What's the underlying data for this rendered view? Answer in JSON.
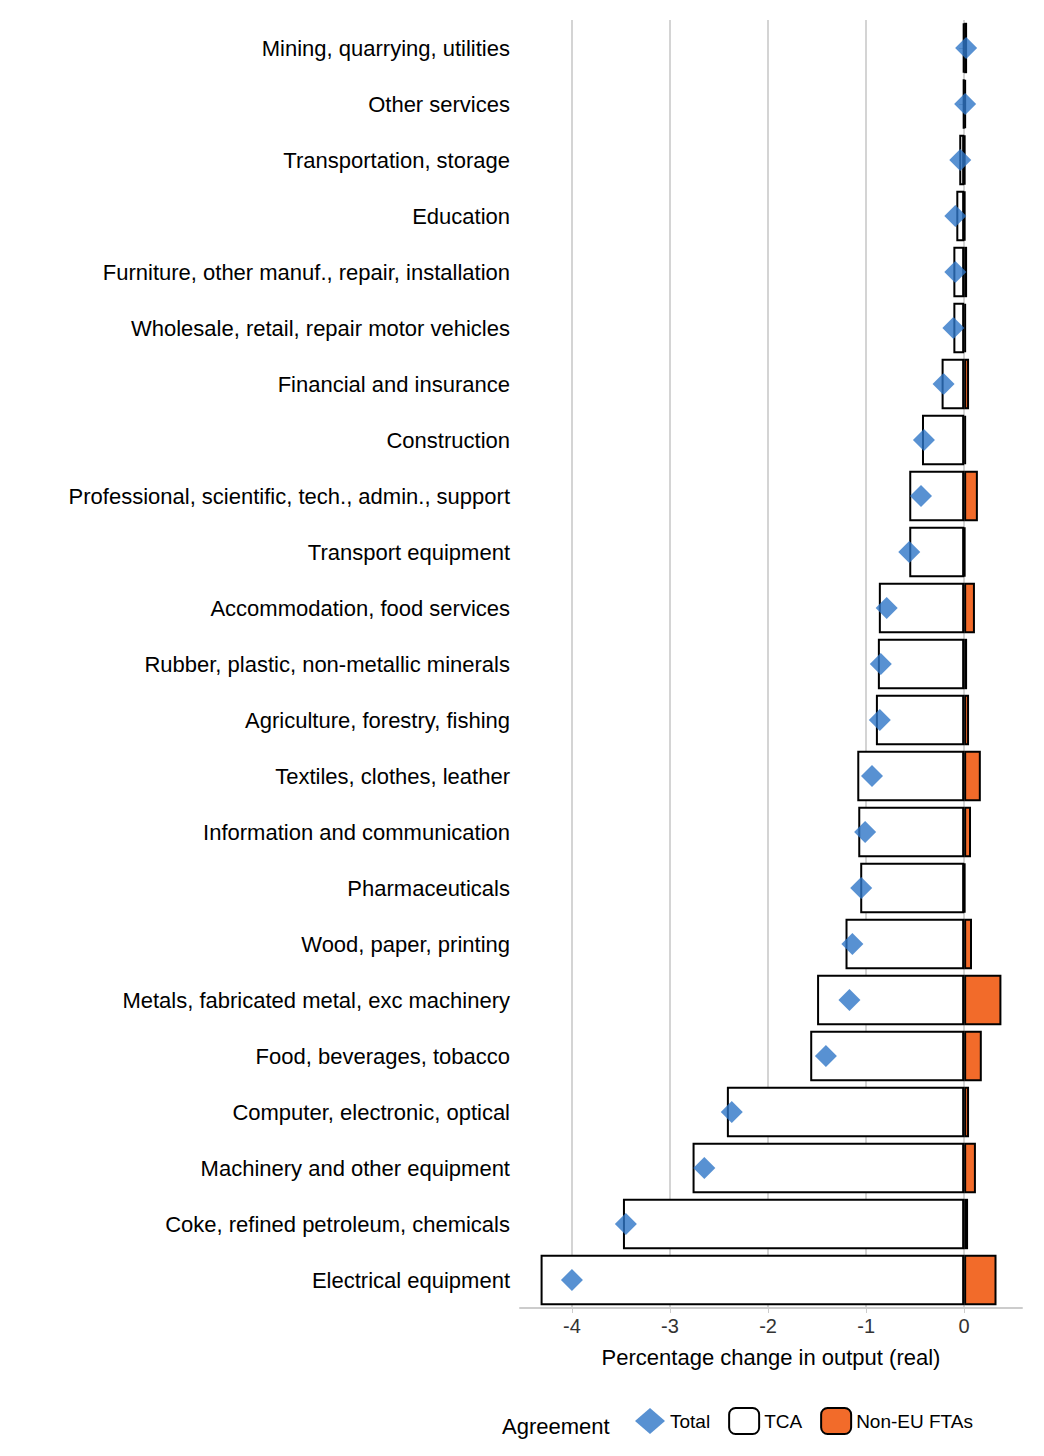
{
  "chart_data": {
    "type": "bar",
    "orientation": "horizontal",
    "stacked": true,
    "grid": true,
    "legend": "bottom",
    "legend_title": "Agreement",
    "x_label": "Percentage change in output (real)",
    "categories": [
      "Mining, quarrying, utilities",
      "Other services",
      "Transportation, storage",
      "Education",
      "Furniture, other manuf., repair, installation",
      "Wholesale, retail, repair motor vehicles",
      "Financial and insurance",
      "Construction",
      "Professional, scientific, tech., admin., support",
      "Transport equipment",
      "Accommodation, food services",
      "Rubber, plastic, non-metallic minerals",
      "Agriculture, forestry, fishing",
      "Textiles, clothes, leather",
      "Information and communication",
      "Pharmaceuticals",
      "Wood, paper, printing",
      "Metals, fabricated metal, exc machinery",
      "Food, beverages, tobacco",
      "Computer, electronic, optical",
      "Machinery and other equipment",
      "Coke, refined petroleum, chemicals",
      "Electrical equipment"
    ],
    "series": [
      {
        "name": "Total",
        "type": "scatter",
        "marker": "diamond",
        "color": "#2e75c7",
        "values": [
          0.02,
          0.01,
          -0.04,
          -0.09,
          -0.09,
          -0.11,
          -0.21,
          -0.41,
          -0.44,
          -0.56,
          -0.79,
          -0.85,
          -0.86,
          -0.94,
          -1.01,
          -1.05,
          -1.14,
          -1.17,
          -1.41,
          -2.37,
          -2.65,
          -3.45,
          -4.0
        ]
      },
      {
        "name": "TCA",
        "type": "bar",
        "color": "#ffffff",
        "values": [
          -0.01,
          -0.01,
          -0.05,
          -0.08,
          -0.11,
          -0.11,
          -0.23,
          -0.43,
          -0.56,
          -0.56,
          -0.87,
          -0.88,
          -0.9,
          -1.09,
          -1.08,
          -1.06,
          -1.21,
          -1.5,
          -1.57,
          -2.42,
          -2.77,
          -3.48,
          -4.32
        ]
      },
      {
        "name": "Non-EU FTAs",
        "type": "bar",
        "color": "#f26b2a",
        "values": [
          0.03,
          0.02,
          0.01,
          0.01,
          0.03,
          0.02,
          0.05,
          0.02,
          0.14,
          0.01,
          0.11,
          0.03,
          0.05,
          0.17,
          0.07,
          0.01,
          0.08,
          0.38,
          0.18,
          0.05,
          0.12,
          0.04,
          0.33
        ]
      }
    ],
    "xlim": [
      -4.53,
      0.59
    ],
    "xticks": [
      -4,
      -3,
      -2,
      -1,
      0
    ]
  }
}
